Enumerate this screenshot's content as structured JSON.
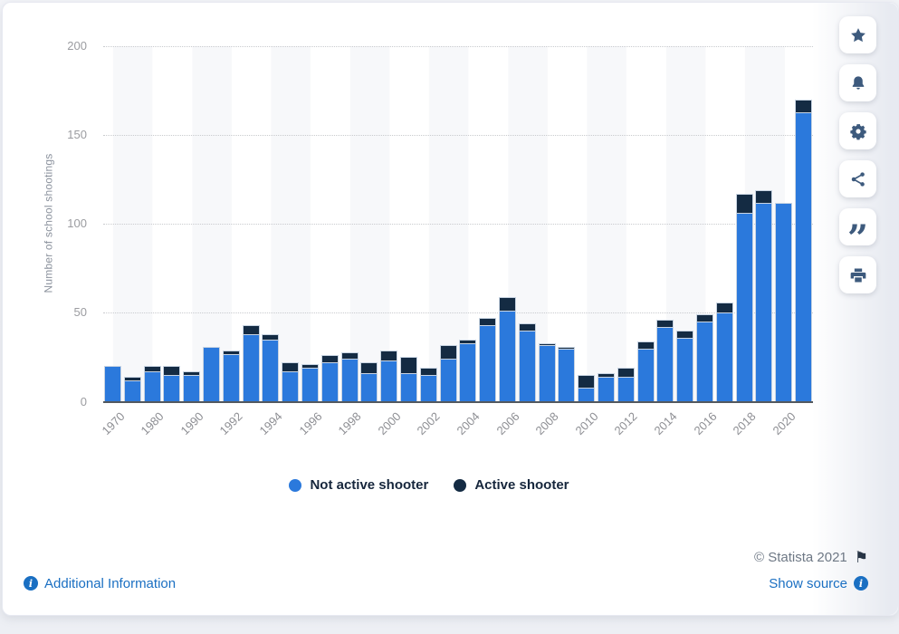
{
  "colors": {
    "not_active_blue": "#2B79DC",
    "active_navy": "#142B43",
    "link_blue": "#1a6fc2",
    "axis_line": "#53595f",
    "tick_gray": "#9b9ca0",
    "legend_text": "#16263c",
    "icon_slate": "#3d5a7d",
    "bar_border": "#c8d4e2"
  },
  "chart_data": {
    "type": "bar",
    "stacked": true,
    "title": "",
    "xlabel": "",
    "ylabel": "Number of school shootings",
    "ylim": [
      0,
      200
    ],
    "yticks": [
      0,
      50,
      100,
      150,
      200
    ],
    "grid": "horizontal-dotted",
    "legend_position": "bottom",
    "categories": [
      "1970",
      "1975",
      "1980",
      "1985",
      "1990",
      "1991",
      "1992",
      "1993",
      "1994",
      "1995",
      "1996",
      "1997",
      "1998",
      "1999",
      "2000",
      "2001",
      "2002",
      "2003",
      "2004",
      "2005",
      "2006",
      "2007",
      "2008",
      "2009",
      "2010",
      "2011",
      "2012",
      "2013",
      "2014",
      "2015",
      "2016",
      "2017",
      "2018",
      "2019",
      "2020",
      "2021"
    ],
    "x_tick_labels": [
      "1970",
      "1980",
      "1990",
      "1992",
      "1994",
      "1996",
      "1998",
      "2000",
      "2002",
      "2004",
      "2006",
      "2008",
      "2010",
      "2012",
      "2014",
      "2016",
      "2018",
      "2020"
    ],
    "series": [
      {
        "name": "Not active shooter",
        "color": "#2B79DC",
        "values": [
          20,
          12,
          17,
          15,
          15,
          31,
          27,
          38,
          35,
          17,
          19,
          22,
          24,
          16,
          23,
          16,
          15,
          24,
          33,
          43,
          51,
          40,
          32,
          30,
          8,
          14,
          14,
          30,
          42,
          36,
          45,
          50,
          106,
          112,
          112,
          163
        ]
      },
      {
        "name": "Active shooter",
        "color": "#142B43",
        "values": [
          0,
          2,
          3,
          5,
          2,
          0,
          2,
          5,
          3,
          5,
          2,
          4,
          4,
          6,
          6,
          9,
          4,
          8,
          2,
          4,
          8,
          4,
          1,
          1,
          7,
          2,
          5,
          4,
          4,
          4,
          4,
          6,
          11,
          7,
          0,
          7
        ]
      }
    ]
  },
  "sidebar": {
    "buttons": [
      {
        "name": "favorite",
        "icon": "star"
      },
      {
        "name": "notifications",
        "icon": "bell"
      },
      {
        "name": "settings",
        "icon": "gear"
      },
      {
        "name": "share",
        "icon": "share-nodes"
      },
      {
        "name": "cite",
        "icon": "quote"
      },
      {
        "name": "print",
        "icon": "printer"
      }
    ],
    "quote_glyph": "”"
  },
  "footer": {
    "additional_information": "Additional Information",
    "show_source": "Show source",
    "copyright": "© Statista 2021",
    "flag_glyph": "⚑",
    "info_glyph": "i"
  }
}
